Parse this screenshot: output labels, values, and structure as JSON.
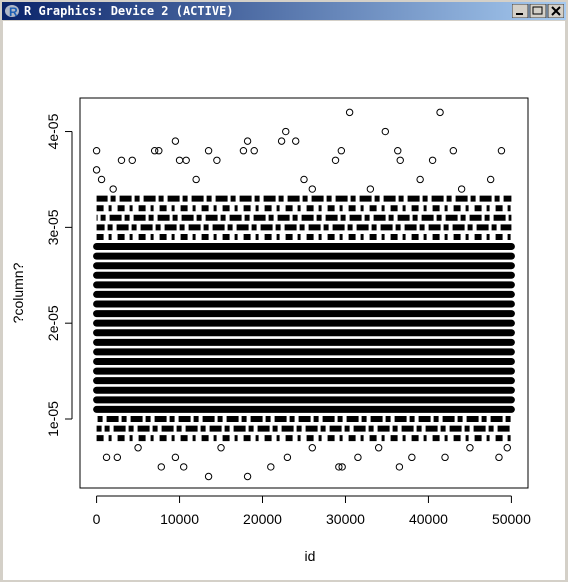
{
  "window": {
    "title": "R Graphics: Device 2 (ACTIVE)"
  },
  "chart_data": {
    "type": "scatter",
    "x_label": "id",
    "y_label": "?column?",
    "xlim": [
      -1999,
      52000
    ],
    "ylim": [
      2.8e-06,
      4.35e-05
    ],
    "xticks": [
      0,
      10000,
      20000,
      30000,
      40000,
      50000
    ],
    "yticks": [
      {
        "value": 1e-05,
        "label": "1e-05"
      },
      {
        "value": 2e-05,
        "label": "2e-05"
      },
      {
        "value": 3e-05,
        "label": "3e-05"
      },
      {
        "value": 4e-05,
        "label": "4e-05"
      }
    ],
    "id_range": [
      1,
      50000
    ],
    "bands": [
      1.1e-05,
      1.2e-05,
      1.3e-05,
      1.4e-05,
      1.5e-05,
      1.6e-05,
      1.7e-05,
      1.8e-05,
      1.9e-05,
      2e-05,
      2.1e-05,
      2.2e-05,
      2.3e-05,
      2.4e-05,
      2.5e-05,
      2.6e-05,
      2.7e-05,
      2.8e-05
    ],
    "partial_bands": [
      8e-06,
      9e-06,
      1e-05,
      2.9e-05,
      3e-05,
      3.1e-05,
      3.2e-05,
      3.3e-05
    ],
    "x": [
      0,
      0,
      600,
      3000,
      4300,
      7000,
      7500,
      9500,
      10000,
      10800,
      13500,
      14500,
      17700,
      18200,
      19000,
      22300,
      22800,
      24000,
      28800,
      29500,
      30500,
      34800,
      36300,
      36600,
      41400,
      40500,
      43000,
      48800,
      47500,
      12000,
      25000,
      26000,
      33000,
      2000,
      39000,
      44000,
      1200,
      2500,
      7800,
      9500,
      10500,
      13500,
      18200,
      21000,
      23000,
      29600,
      29200,
      31500,
      36500,
      38000,
      42000,
      48500,
      49500,
      5000,
      15000,
      26000,
      34000,
      45000
    ],
    "y": [
      3.8e-05,
      3.6e-05,
      3.5e-05,
      3.7e-05,
      3.7e-05,
      3.8e-05,
      3.8e-05,
      3.9e-05,
      3.7e-05,
      3.7e-05,
      3.8e-05,
      3.7e-05,
      3.8e-05,
      3.9e-05,
      3.8e-05,
      3.9e-05,
      4e-05,
      3.9e-05,
      3.7e-05,
      3.8e-05,
      4.2e-05,
      4e-05,
      3.8e-05,
      3.7e-05,
      4.2e-05,
      3.7e-05,
      3.8e-05,
      3.8e-05,
      3.5e-05,
      3.5e-05,
      3.5e-05,
      3.4e-05,
      3.4e-05,
      3.4e-05,
      3.5e-05,
      3.4e-05,
      6e-06,
      6e-06,
      5e-06,
      6e-06,
      5e-06,
      4e-06,
      4e-06,
      5e-06,
      6e-06,
      5e-06,
      5e-06,
      6e-06,
      5e-06,
      6e-06,
      6e-06,
      6e-06,
      7e-06,
      7e-06,
      7e-06,
      7e-06,
      7e-06,
      7e-06
    ]
  }
}
